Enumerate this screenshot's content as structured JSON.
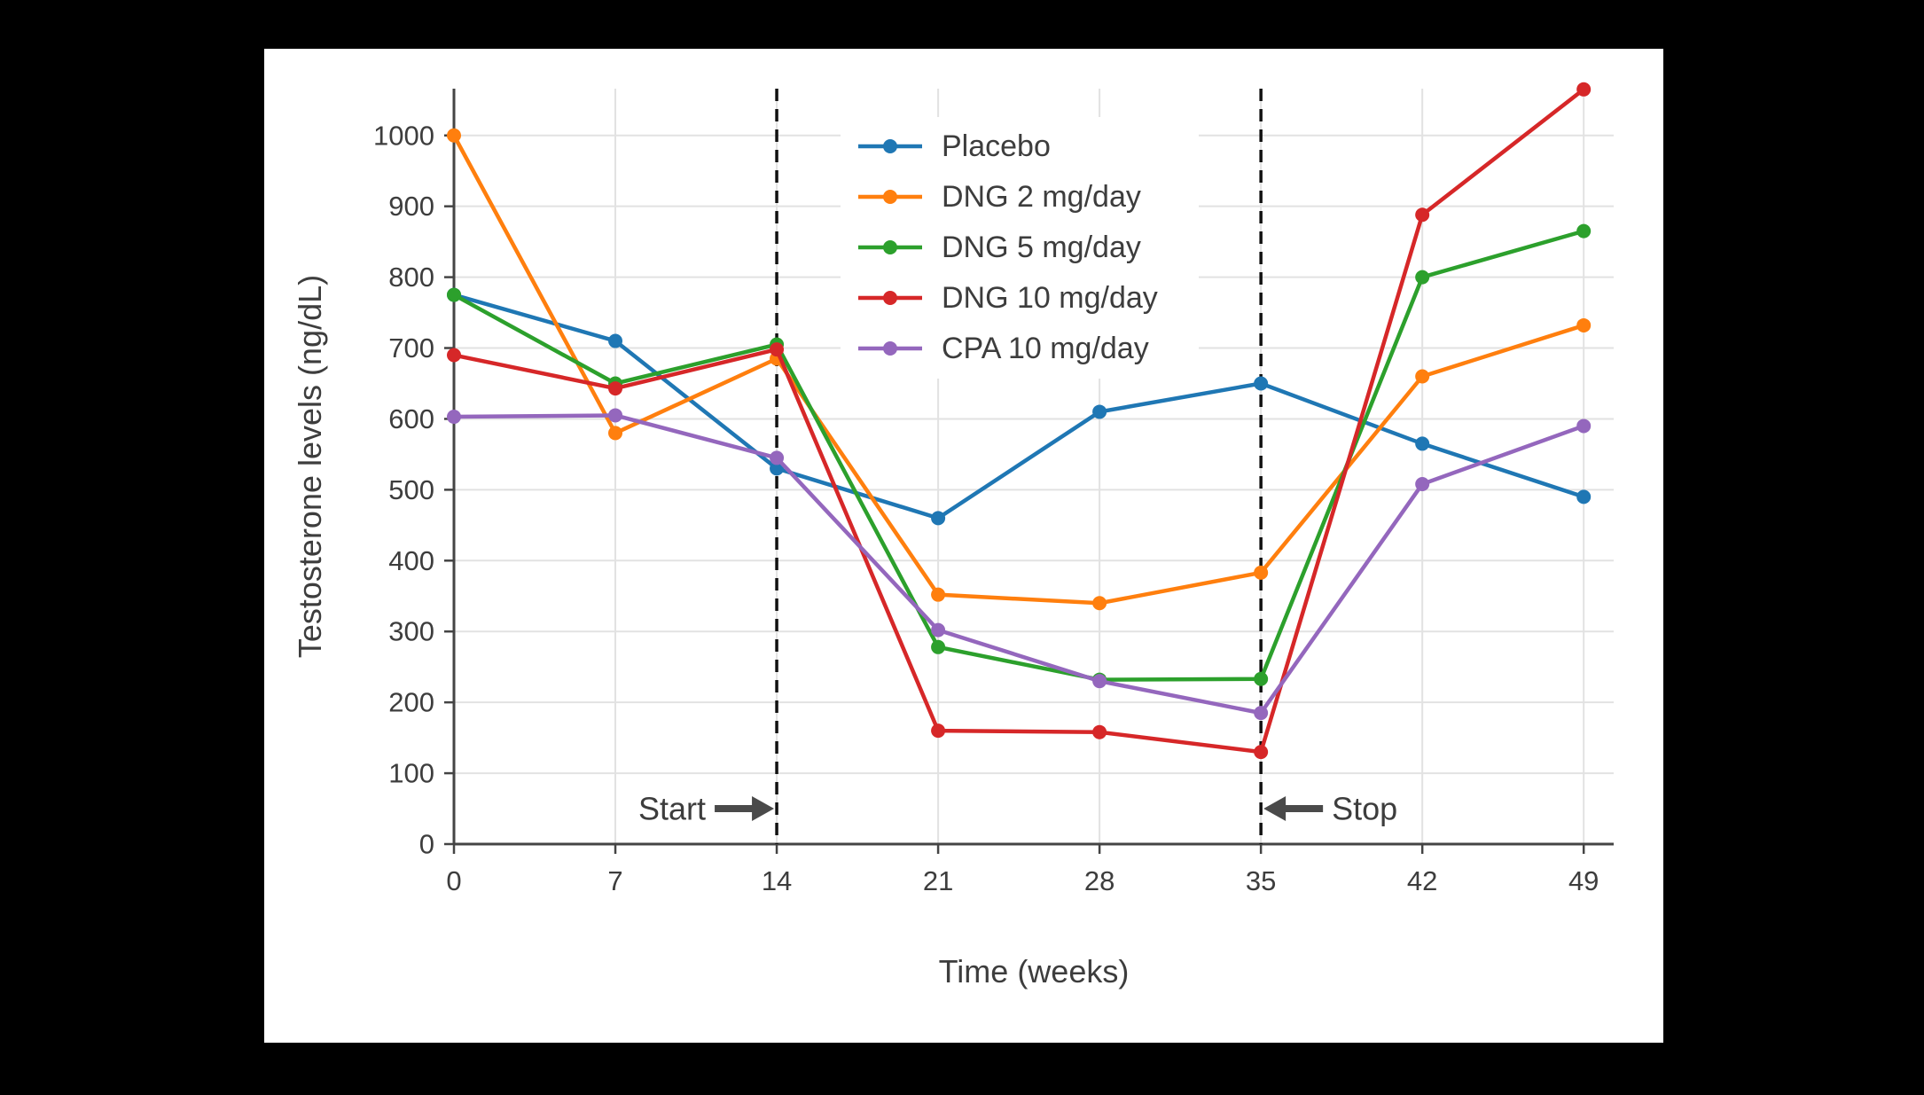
{
  "colors": {
    "background": "#000000",
    "panel": "#ffffff",
    "grid": "#e2e2e2",
    "axis": "#444444",
    "text": "#3d3d3d",
    "event_line": "#111111",
    "arrow": "#4a4a4a"
  },
  "chart_data": {
    "type": "line",
    "title": "",
    "xlabel": "Time (weeks)",
    "ylabel": "Testosterone levels (ng/dL)",
    "x": [
      0,
      7,
      14,
      21,
      28,
      35,
      42,
      49
    ],
    "xticks": [
      0,
      7,
      14,
      21,
      28,
      35,
      42,
      49
    ],
    "yticks": [
      0,
      100,
      200,
      300,
      400,
      500,
      600,
      700,
      800,
      900,
      1000
    ],
    "xlim": [
      0,
      50.3
    ],
    "ylim": [
      0,
      1066
    ],
    "grid": true,
    "legend_position": "top-center-inside",
    "series": [
      {
        "name": "Placebo",
        "color": "#1f77b4",
        "values": [
          775,
          710,
          530,
          460,
          610,
          650,
          565,
          490
        ]
      },
      {
        "name": "DNG 2 mg/day",
        "color": "#ff7f0e",
        "values": [
          1000,
          580,
          685,
          352,
          340,
          383,
          660,
          732
        ]
      },
      {
        "name": "DNG 5 mg/day",
        "color": "#2ca02c",
        "values": [
          775,
          650,
          705,
          278,
          232,
          233,
          800,
          865
        ]
      },
      {
        "name": "DNG 10 mg/day",
        "color": "#d62728",
        "values": [
          690,
          643,
          698,
          160,
          158,
          130,
          888,
          1065
        ]
      },
      {
        "name": "CPA 10 mg/day",
        "color": "#9467bd",
        "values": [
          603,
          605,
          545,
          302,
          230,
          185,
          508,
          590
        ]
      }
    ],
    "events": [
      {
        "label": "Start",
        "week": 14,
        "arrow": "right",
        "y": 50
      },
      {
        "label": "Stop",
        "week": 35,
        "arrow": "left",
        "y": 50
      }
    ]
  }
}
